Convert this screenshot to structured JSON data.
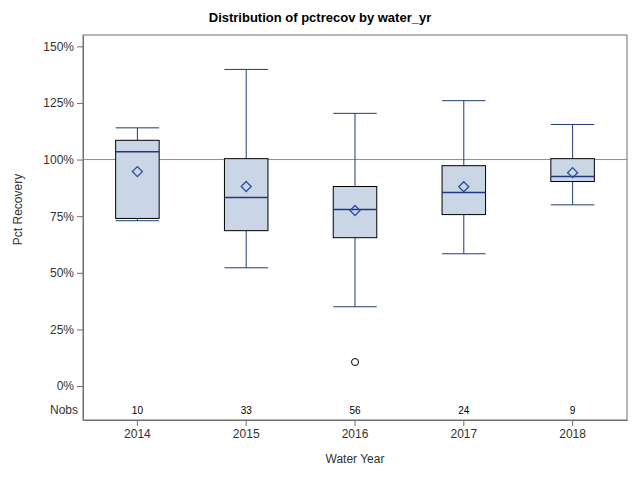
{
  "chart_data": {
    "type": "box",
    "title": "Distribution of pctrecov by water_yr",
    "x_label": "Water Year",
    "y_label": "Pct Recovery",
    "categories": [
      "2014",
      "2015",
      "2016",
      "2017",
      "2018"
    ],
    "boxes": [
      {
        "whisker_low": 73,
        "q1": 74,
        "median": 103.5,
        "q3": 108.5,
        "whisker_high": 114,
        "mean": 94.7,
        "outliers": []
      },
      {
        "whisker_low": 52.2,
        "q1": 68.6,
        "median": 83.2,
        "q3": 100.4,
        "whisker_high": 139.8,
        "mean": 88.1,
        "outliers": []
      },
      {
        "whisker_low": 35,
        "q1": 65.5,
        "median": 77.9,
        "q3": 88.1,
        "whisker_high": 120.4,
        "mean": 77.5,
        "outliers": [
          10.6
        ]
      },
      {
        "whisker_low": 58.4,
        "q1": 75.7,
        "median": 85.4,
        "q3": 97.3,
        "whisker_high": 126,
        "mean": 88,
        "outliers": []
      },
      {
        "whisker_low": 80,
        "q1": 90.3,
        "median": 92.5,
        "q3": 100.4,
        "whisker_high": 115.5,
        "mean": 94.2,
        "outliers": []
      }
    ],
    "nobs_label": "Nobs",
    "nobs": [
      10,
      33,
      56,
      24,
      9
    ],
    "reference_line": 100,
    "ylim": [
      -15,
      155
    ],
    "yticks": [
      {
        "value": 0,
        "label": "0%"
      },
      {
        "value": 25,
        "label": "25%"
      },
      {
        "value": 50,
        "label": "50%"
      },
      {
        "value": 75,
        "label": "75%"
      },
      {
        "value": 100,
        "label": "100%"
      },
      {
        "value": 125,
        "label": "125%"
      },
      {
        "value": 150,
        "label": "150%"
      }
    ],
    "grid": false
  }
}
